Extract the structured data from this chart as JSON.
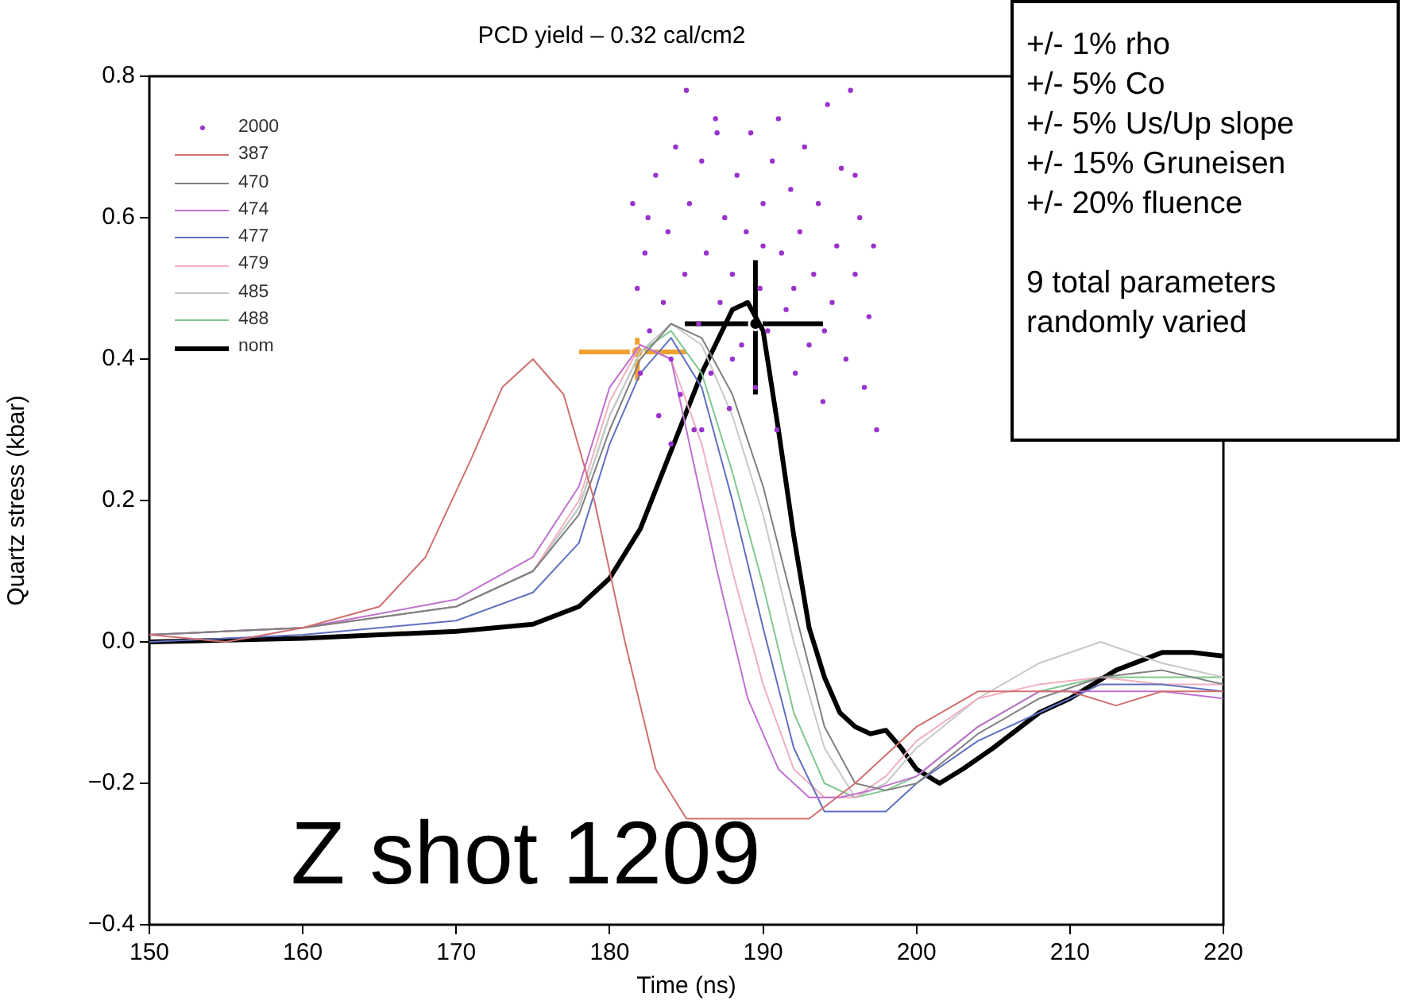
{
  "chart_data": {
    "type": "line",
    "title": "PCD yield – 0.32 cal/cm2",
    "xlabel": "Time (ns)",
    "ylabel": "Quartz stress (kbar)",
    "xlim": [
      150,
      220
    ],
    "xticks": [
      150,
      160,
      170,
      180,
      190,
      200,
      210,
      220
    ],
    "ylim": [
      -0.4,
      0.8
    ],
    "yticks": [
      {
        "value": -0.4,
        "label": "−0.4"
      },
      {
        "value": -0.2,
        "label": "−0.2"
      },
      {
        "value": 0,
        "label": "0.0"
      },
      0.2,
      0.4,
      0.6,
      0.8
    ],
    "grid": false,
    "legend": "top left",
    "annotations": [
      "+/- 1% rho",
      "+/- 5% Co",
      "+/- 5% Us/Up slope",
      "+/- 15% Gruneisen",
      "+/- 20% fluence",
      "9 total parameters randomly varied",
      "Z shot 1209"
    ],
    "series": [
      {
        "name": "2000",
        "type": "scatter",
        "marker": "circle",
        "color": "#9933cc",
        "x": [
          181.5,
          181.8,
          182,
          182.3,
          182.6,
          183,
          183.2,
          183.5,
          183.8,
          184,
          184.3,
          184.6,
          184.9,
          185.2,
          185.5,
          185.8,
          186,
          186.3,
          186.6,
          186.9,
          187.2,
          187.5,
          187.8,
          188,
          188.3,
          188.6,
          188.9,
          189.2,
          189.5,
          189.8,
          190,
          190.3,
          190.6,
          190.9,
          191.2,
          191.5,
          191.8,
          192.1,
          192.4,
          192.7,
          193,
          193.3,
          193.6,
          193.9,
          194.2,
          194.5,
          194.8,
          195.1,
          195.4,
          195.7,
          196,
          196.3,
          196.6,
          196.9,
          197.2,
          197.4,
          185,
          187,
          191,
          182.5,
          184,
          186,
          188,
          190,
          192,
          194,
          196
        ],
        "values": [
          0.62,
          0.5,
          0.38,
          0.55,
          0.44,
          0.66,
          0.32,
          0.48,
          0.58,
          0.4,
          0.7,
          0.35,
          0.52,
          0.62,
          0.3,
          0.45,
          0.68,
          0.55,
          0.38,
          0.74,
          0.48,
          0.6,
          0.33,
          0.52,
          0.66,
          0.42,
          0.58,
          0.72,
          0.36,
          0.5,
          0.62,
          0.44,
          0.68,
          0.3,
          0.55,
          0.47,
          0.64,
          0.38,
          0.58,
          0.7,
          0.42,
          0.52,
          0.62,
          0.34,
          0.76,
          0.48,
          0.56,
          0.67,
          0.4,
          0.78,
          0.52,
          0.6,
          0.36,
          0.46,
          0.56,
          0.3,
          0.78,
          0.72,
          0.74,
          0.6,
          0.28,
          0.3,
          0.4,
          0.56,
          0.5,
          0.44,
          0.66
        ]
      },
      {
        "name": "387",
        "color": "#d07070",
        "x": [
          150,
          155,
          160,
          165,
          168,
          171,
          173,
          175,
          177,
          179,
          181,
          183,
          185,
          193,
          196,
          200,
          204,
          207,
          210,
          213,
          216,
          220
        ],
        "values": [
          0.01,
          0.0,
          0.02,
          0.05,
          0.12,
          0.26,
          0.36,
          0.4,
          0.35,
          0.2,
          0.0,
          -0.18,
          -0.25,
          -0.25,
          -0.2,
          -0.12,
          -0.07,
          -0.07,
          -0.07,
          -0.09,
          -0.07,
          -0.07
        ]
      },
      {
        "name": "470",
        "color": "#808080",
        "x": [
          150,
          160,
          170,
          175,
          178,
          180,
          182,
          184,
          186,
          188,
          190,
          192,
          194,
          196,
          198,
          200,
          204,
          208,
          212,
          216,
          220
        ],
        "values": [
          0.01,
          0.02,
          0.05,
          0.1,
          0.18,
          0.3,
          0.4,
          0.45,
          0.43,
          0.35,
          0.22,
          0.05,
          -0.12,
          -0.2,
          -0.21,
          -0.2,
          -0.13,
          -0.08,
          -0.05,
          -0.04,
          -0.06
        ]
      },
      {
        "name": "474",
        "color": "#c070d0",
        "x": [
          150,
          160,
          170,
          175,
          178,
          180,
          182,
          184,
          185,
          187,
          189,
          191,
          193,
          195,
          197,
          200,
          204,
          208,
          212,
          216,
          220
        ],
        "values": [
          0.01,
          0.02,
          0.06,
          0.12,
          0.22,
          0.36,
          0.42,
          0.4,
          0.3,
          0.1,
          -0.08,
          -0.18,
          -0.22,
          -0.22,
          -0.21,
          -0.19,
          -0.12,
          -0.07,
          -0.07,
          -0.07,
          -0.08
        ]
      },
      {
        "name": "477",
        "color": "#6070c0",
        "x": [
          150,
          160,
          170,
          175,
          178,
          180,
          182,
          184,
          186,
          188,
          190,
          192,
          194,
          196,
          198,
          200,
          204,
          208,
          212,
          216,
          220
        ],
        "values": [
          0.0,
          0.01,
          0.03,
          0.07,
          0.14,
          0.28,
          0.38,
          0.43,
          0.36,
          0.2,
          0.02,
          -0.15,
          -0.24,
          -0.24,
          -0.24,
          -0.2,
          -0.14,
          -0.1,
          -0.06,
          -0.06,
          -0.07
        ]
      },
      {
        "name": "479",
        "color": "#f0b0c0",
        "x": [
          150,
          160,
          170,
          175,
          178,
          180,
          182,
          184,
          186,
          188,
          190,
          192,
          194,
          196,
          198,
          200,
          204,
          208,
          212,
          216,
          220
        ],
        "values": [
          0.01,
          0.02,
          0.05,
          0.1,
          0.2,
          0.34,
          0.42,
          0.4,
          0.28,
          0.1,
          -0.06,
          -0.18,
          -0.22,
          -0.22,
          -0.19,
          -0.14,
          -0.08,
          -0.06,
          -0.05,
          -0.06,
          -0.06
        ]
      },
      {
        "name": "485",
        "color": "#c8c8c8",
        "x": [
          150,
          160,
          170,
          175,
          178,
          180,
          182,
          184,
          186,
          188,
          190,
          192,
          194,
          196,
          198,
          200,
          204,
          208,
          212,
          216,
          220
        ],
        "values": [
          0.01,
          0.02,
          0.05,
          0.1,
          0.19,
          0.32,
          0.41,
          0.45,
          0.42,
          0.32,
          0.18,
          0.0,
          -0.15,
          -0.22,
          -0.2,
          -0.15,
          -0.08,
          -0.03,
          0.0,
          -0.03,
          -0.05
        ]
      },
      {
        "name": "488",
        "color": "#80c890",
        "x": [
          150,
          160,
          170,
          175,
          178,
          180,
          182,
          184,
          186,
          188,
          190,
          192,
          194,
          196,
          198,
          200,
          204,
          208,
          212,
          216,
          220
        ],
        "values": [
          0.01,
          0.02,
          0.05,
          0.1,
          0.19,
          0.32,
          0.41,
          0.44,
          0.38,
          0.24,
          0.08,
          -0.1,
          -0.2,
          -0.22,
          -0.21,
          -0.19,
          -0.12,
          -0.07,
          -0.05,
          -0.05,
          -0.05
        ]
      },
      {
        "name": "nom",
        "color": "#000000",
        "x": [
          150,
          160,
          170,
          175,
          178,
          180,
          182,
          184,
          186,
          188,
          189,
          190,
          191,
          192,
          193,
          194,
          195,
          196,
          197,
          198,
          199,
          200,
          201.5,
          203,
          205,
          208,
          210,
          213,
          216,
          218,
          220
        ],
        "values": [
          0.0,
          0.005,
          0.015,
          0.025,
          0.05,
          0.09,
          0.16,
          0.27,
          0.38,
          0.47,
          0.48,
          0.44,
          0.3,
          0.15,
          0.02,
          -0.05,
          -0.1,
          -0.12,
          -0.13,
          -0.125,
          -0.15,
          -0.18,
          -0.2,
          -0.18,
          -0.15,
          -0.1,
          -0.08,
          -0.04,
          -0.015,
          -0.015,
          -0.02
        ]
      },
      {
        "type": "scatter",
        "marker": "circle",
        "color": "#f0a030",
        "x": [
          181.8
        ],
        "values": [
          0.41
        ],
        "errors": [
          [
            0.37,
            0.43
          ]
        ],
        "xerrors": [
          [
            178,
            185
          ]
        ]
      },
      {
        "type": "scatter",
        "marker": "circle",
        "color": "#000000",
        "x": [
          189.5
        ],
        "values": [
          0.45
        ],
        "errors": [
          [
            0.35,
            0.54
          ]
        ],
        "xerrors": [
          [
            184.9,
            193.9
          ]
        ]
      }
    ]
  }
}
